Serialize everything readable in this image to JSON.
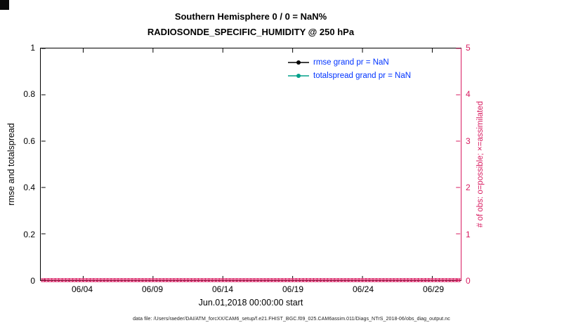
{
  "figure": {
    "caption": "data file: /Users/raeder/DAI/ATM_forcXX/CAM6_setup/f.e21.FHIST_BGC.f09_025.CAM6assim.011/Diags_NTrS_2018-06/obs_diag_output.nc"
  },
  "colors": {
    "axis": "#000000",
    "right_axis": "#d81b60",
    "legend_text": "#0033ff",
    "rmse": "#000000",
    "totalspread": "#00a08a",
    "background": "#ffffff"
  },
  "legend": {
    "position": "inside-top-right",
    "items": [
      {
        "label": "rmse grand pr = NaN",
        "color": "#000000"
      },
      {
        "label": "totalspread grand pr = NaN",
        "color": "#00a08a"
      }
    ]
  },
  "chart_data": {
    "type": "line",
    "title": "Southern Hemisphere 0 / 0 = NaN%",
    "subtitle": "RADIOSONDE_SPECIFIC_HUMIDITY @ 250 hPa",
    "xlabel": "Jun.01,2018 00:00:00 start",
    "ylabel": "rmse and totalspread",
    "ylabel_right": "# of obs: o=possible; ×=assimilated",
    "x_start": "Jun.01,2018 00:00:00",
    "xlim_days": [
      0,
      30
    ],
    "xticks": [
      {
        "label": "06/04",
        "day": 3
      },
      {
        "label": "06/09",
        "day": 8
      },
      {
        "label": "06/14",
        "day": 13
      },
      {
        "label": "06/19",
        "day": 18
      },
      {
        "label": "06/24",
        "day": 23
      },
      {
        "label": "06/29",
        "day": 28
      }
    ],
    "ylim": [
      0,
      1
    ],
    "yticks": [
      "0",
      "0.2",
      "0.4",
      "0.6",
      "0.8",
      "1"
    ],
    "ytick_values": [
      0,
      0.2,
      0.4,
      0.6,
      0.8,
      1
    ],
    "ylim_right": [
      0,
      5
    ],
    "yticks_right": [
      "0",
      "1",
      "2",
      "3",
      "4",
      "5"
    ],
    "ytick_right_values": [
      0,
      1,
      2,
      3,
      4,
      5
    ],
    "grid": false,
    "series": [
      {
        "name": "rmse grand pr = NaN",
        "axis": "left",
        "color": "#000000",
        "marker": "dot-line",
        "values": []
      },
      {
        "name": "totalspread grand pr = NaN",
        "axis": "left",
        "color": "#00a08a",
        "marker": "dot-line",
        "values": []
      },
      {
        "name": "possible obs (o)",
        "axis": "right",
        "color": "#d81b60",
        "marker": "o",
        "constant_value": 0,
        "points_per_day": 4,
        "days": 30
      },
      {
        "name": "assimilated obs (x)",
        "axis": "right",
        "color": "#d81b60",
        "marker": "x",
        "constant_value": 0,
        "points_per_day": 4,
        "days": 30
      }
    ]
  }
}
